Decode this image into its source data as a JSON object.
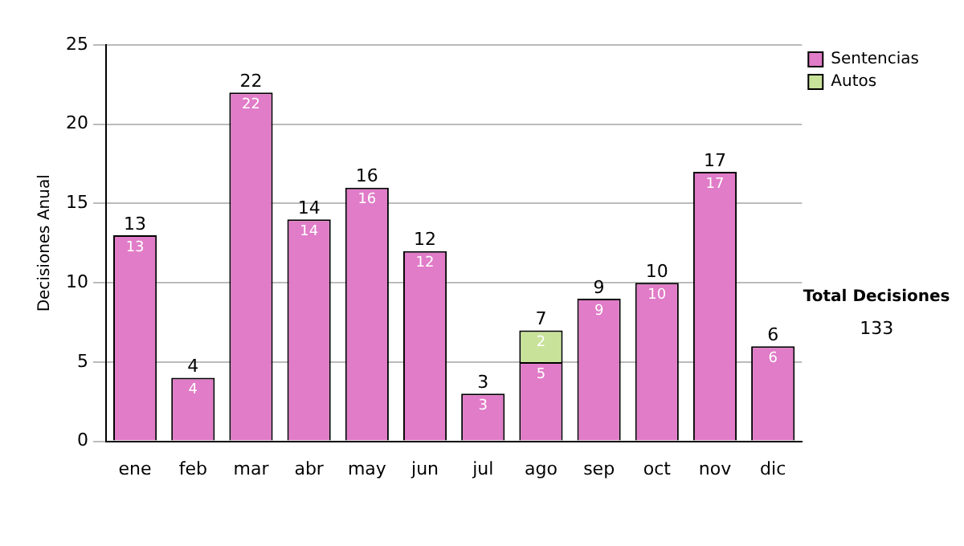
{
  "chart_data": {
    "type": "bar",
    "stacked": true,
    "ylabel": "Decisiones Anual",
    "categories": [
      "ene",
      "feb",
      "mar",
      "abr",
      "may",
      "jun",
      "jul",
      "ago",
      "sep",
      "oct",
      "nov",
      "dic"
    ],
    "series": [
      {
        "name": "Sentencias",
        "color": "#e07cc8",
        "values": [
          13,
          4,
          22,
          14,
          16,
          12,
          3,
          5,
          9,
          10,
          17,
          6
        ]
      },
      {
        "name": "Autos",
        "color": "#c8e29a",
        "values": [
          null,
          null,
          null,
          null,
          null,
          null,
          null,
          2,
          null,
          null,
          null,
          null
        ]
      }
    ],
    "ylim": [
      0,
      25
    ],
    "yticks": [
      0,
      5,
      10,
      15,
      20,
      25
    ],
    "grid": "y",
    "legend": "right",
    "data_labels": true,
    "totals": [
      "13",
      "4",
      "22",
      "14",
      "16",
      "12",
      "3",
      "7",
      "9",
      "10",
      "17",
      "6"
    ],
    "annotations": [
      "Total Decisiones",
      "133"
    ]
  }
}
